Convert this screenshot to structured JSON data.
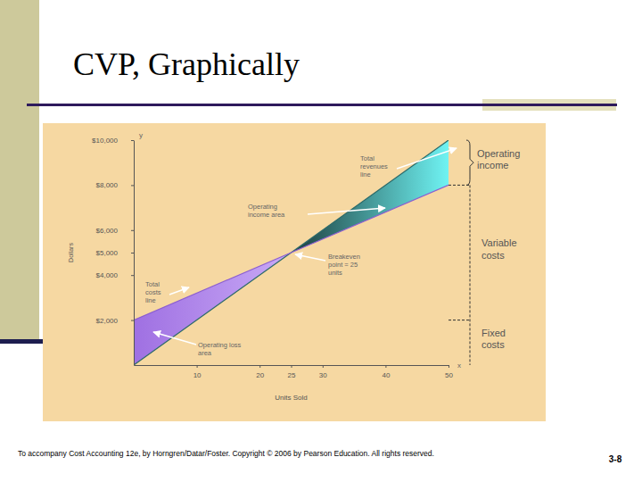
{
  "footer": "To accompany Cost Accounting 12e, by Horngren/Datar/Foster. Copyright © 2006 by Pearson Education. All rights reserved.",
  "page_number": "3-8",
  "chart_data": {
    "type": "line",
    "title": "CVP, Graphically",
    "x_label": "Units Sold",
    "y_label": "Dollars",
    "x": [
      0,
      25,
      50
    ],
    "series": [
      {
        "name": "Total revenues line",
        "color": "#2b6a6a",
        "values": [
          0,
          5000,
          10000
        ]
      },
      {
        "name": "Total costs line",
        "color": "#8c5fd0",
        "values": [
          2000,
          5000,
          8000
        ]
      }
    ],
    "xlim": [
      0,
      50
    ],
    "ylim": [
      0,
      10000
    ],
    "xticks": [
      10,
      20,
      25,
      30,
      40,
      50
    ],
    "yticks": [
      {
        "value": 2000,
        "label": "$2,000"
      },
      {
        "value": 4000,
        "label": "$4,000"
      },
      {
        "value": 5000,
        "label": "$5,000"
      },
      {
        "value": 6000,
        "label": "$6,000"
      },
      {
        "value": 8000,
        "label": "$8,000"
      },
      {
        "value": 10000,
        "label": "$10,000"
      }
    ],
    "grid": false,
    "annotations": [
      "Operating income area",
      "Breakeven point = 25 units",
      "Operating loss area",
      "Operating income",
      "Variable costs",
      "Fixed costs",
      "y",
      "x"
    ]
  }
}
